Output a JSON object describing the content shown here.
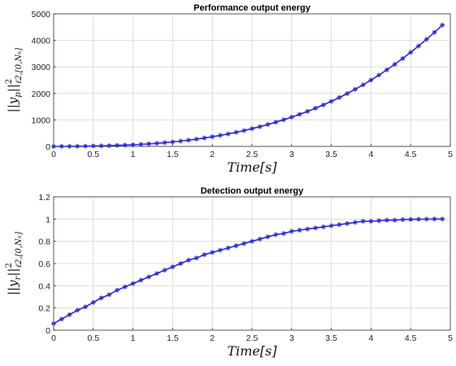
{
  "chart_data": [
    {
      "type": "line",
      "title": "Performance output energy",
      "xlabel": "Time[s]",
      "ylabel": {
        "main": "||y",
        "sub": "p",
        "close": "||",
        "sup": "2",
        "norm": "ℓ2,[0,Nₕ]"
      },
      "xlim": [
        0,
        5
      ],
      "ylim": [
        0,
        5000
      ],
      "x_ticks": [
        "0",
        "0.5",
        "1",
        "1.5",
        "2",
        "2.5",
        "3",
        "3.5",
        "4",
        "4.5",
        "5"
      ],
      "y_ticks": [
        "0",
        "1000",
        "2000",
        "3000",
        "4000",
        "5000"
      ],
      "grid": true,
      "series": [
        {
          "color": "#2a2ad0",
          "marker": "asterisk",
          "x": [
            0,
            0.1,
            0.2,
            0.3,
            0.4,
            0.5,
            0.6,
            0.7,
            0.8,
            0.9,
            1.0,
            1.1,
            1.2,
            1.3,
            1.4,
            1.5,
            1.6,
            1.7,
            1.8,
            1.9,
            2.0,
            2.1,
            2.2,
            2.3,
            2.4,
            2.5,
            2.6,
            2.7,
            2.8,
            2.9,
            3.0,
            3.1,
            3.2,
            3.3,
            3.4,
            3.5,
            3.6,
            3.7,
            3.8,
            3.9,
            4.0,
            4.1,
            4.2,
            4.3,
            4.4,
            4.5,
            4.6,
            4.7,
            4.8,
            4.9
          ],
          "y": [
            0,
            1,
            3,
            6,
            10,
            15,
            22,
            29,
            39,
            50,
            62,
            78,
            96,
            117,
            142,
            169,
            200,
            235,
            274,
            317,
            364,
            415,
            471,
            531,
            597,
            668,
            744,
            826,
            913,
            1006,
            1105,
            1210,
            1321,
            1440,
            1566,
            1700,
            1842,
            1993,
            2153,
            2322,
            2501,
            2689,
            2888,
            3097,
            3316,
            3546,
            3787,
            4039,
            4302,
            4577
          ]
        }
      ]
    },
    {
      "type": "line",
      "title": "Detection output energy",
      "xlabel": "Time[s]",
      "ylabel": {
        "main": "||y",
        "sub": "r",
        "close": "||",
        "sup": "2",
        "norm": "ℓ2,[0,Nₕ]"
      },
      "xlim": [
        0,
        5
      ],
      "ylim": [
        0,
        1.2
      ],
      "x_ticks": [
        "0",
        "0.5",
        "1",
        "1.5",
        "2",
        "2.5",
        "3",
        "3.5",
        "4",
        "4.5",
        "5"
      ],
      "y_ticks": [
        "0",
        "0.2",
        "0.4",
        "0.6",
        "0.8",
        "1",
        "1.2"
      ],
      "grid": true,
      "series": [
        {
          "color": "#2a2ad0",
          "marker": "asterisk",
          "x": [
            0,
            0.1,
            0.2,
            0.3,
            0.4,
            0.5,
            0.6,
            0.7,
            0.8,
            0.9,
            1.0,
            1.1,
            1.2,
            1.3,
            1.4,
            1.5,
            1.6,
            1.7,
            1.8,
            1.9,
            2.0,
            2.1,
            2.2,
            2.3,
            2.4,
            2.5,
            2.6,
            2.7,
            2.8,
            2.9,
            3.0,
            3.1,
            3.2,
            3.3,
            3.4,
            3.5,
            3.6,
            3.7,
            3.8,
            3.9,
            4.0,
            4.1,
            4.2,
            4.3,
            4.4,
            4.5,
            4.6,
            4.7,
            4.8,
            4.9
          ],
          "y": [
            0.06,
            0.1,
            0.14,
            0.18,
            0.21,
            0.25,
            0.29,
            0.32,
            0.36,
            0.39,
            0.42,
            0.45,
            0.48,
            0.51,
            0.54,
            0.57,
            0.6,
            0.63,
            0.65,
            0.68,
            0.7,
            0.72,
            0.74,
            0.76,
            0.78,
            0.8,
            0.82,
            0.84,
            0.86,
            0.87,
            0.89,
            0.9,
            0.91,
            0.92,
            0.93,
            0.94,
            0.95,
            0.96,
            0.97,
            0.98,
            0.98,
            0.985,
            0.99,
            0.99,
            0.995,
            0.997,
            0.998,
            0.999,
            1.0,
            1.0
          ]
        }
      ]
    }
  ]
}
